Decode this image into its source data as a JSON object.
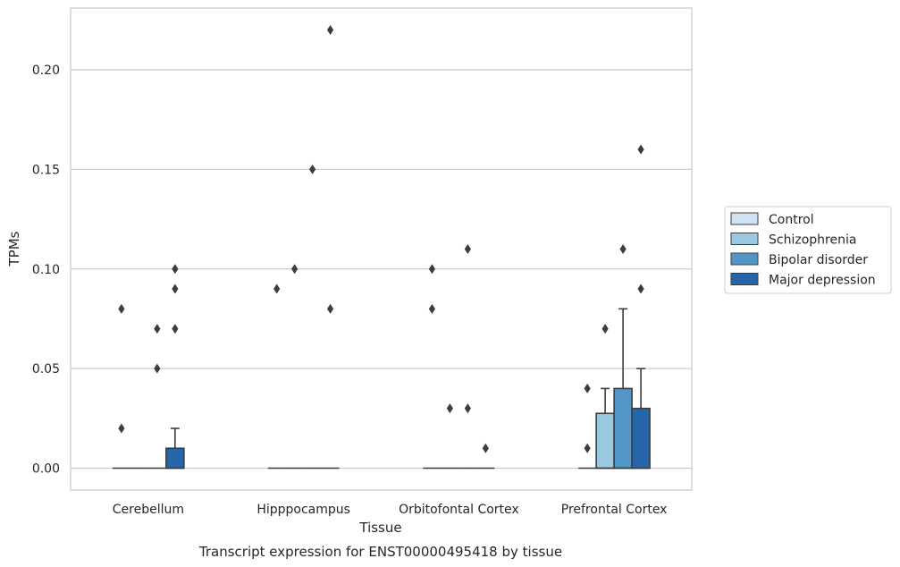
{
  "chart_data": {
    "type": "box",
    "title": "",
    "caption": "Transcript expression for ENST00000495418 by tissue",
    "xlabel": "Tissue",
    "ylabel": "TPMs",
    "ylim": [
      -0.011,
      0.231
    ],
    "yticks": [
      0.0,
      0.05,
      0.1,
      0.15,
      0.2
    ],
    "ytick_labels": [
      "0.00",
      "0.05",
      "0.10",
      "0.15",
      "0.20"
    ],
    "grid": "horizontal",
    "legend_position": "right",
    "categories": [
      "Cerebellum",
      "Hipppocampus",
      "Orbitofontal Cortex",
      "Prefrontal Cortex"
    ],
    "series": [
      {
        "name": "Control",
        "color": "#d1e2f2",
        "boxes": [
          {
            "q1": 0.0,
            "median": 0.0,
            "q3": 0.0,
            "whisker_low": 0.0,
            "whisker_high": 0.0,
            "outliers": [
              0.02,
              0.08
            ]
          },
          {
            "q1": 0.0,
            "median": 0.0,
            "q3": 0.0,
            "whisker_low": 0.0,
            "whisker_high": 0.0,
            "outliers": [
              0.09
            ]
          },
          {
            "q1": 0.0,
            "median": 0.0,
            "q3": 0.0,
            "whisker_low": 0.0,
            "whisker_high": 0.0,
            "outliers": [
              0.08,
              0.1
            ]
          },
          {
            "q1": 0.0,
            "median": 0.0,
            "q3": 0.0,
            "whisker_low": 0.0,
            "whisker_high": 0.0,
            "outliers": [
              0.01,
              0.04
            ]
          }
        ]
      },
      {
        "name": "Schizophrenia",
        "color": "#9ac8e0",
        "boxes": [
          {
            "q1": 0.0,
            "median": 0.0,
            "q3": 0.0,
            "whisker_low": 0.0,
            "whisker_high": 0.0,
            "outliers": []
          },
          {
            "q1": 0.0,
            "median": 0.0,
            "q3": 0.0,
            "whisker_low": 0.0,
            "whisker_high": 0.0,
            "outliers": [
              0.1
            ]
          },
          {
            "q1": 0.0,
            "median": 0.0,
            "q3": 0.0,
            "whisker_low": 0.0,
            "whisker_high": 0.0,
            "outliers": [
              0.03
            ]
          },
          {
            "q1": 0.0,
            "median": 0.0,
            "q3": 0.0275,
            "whisker_low": 0.0,
            "whisker_high": 0.04,
            "outliers": [
              0.07
            ]
          }
        ]
      },
      {
        "name": "Bipolar disorder",
        "color": "#5296c8",
        "boxes": [
          {
            "q1": 0.0,
            "median": 0.0,
            "q3": 0.0,
            "whisker_low": 0.0,
            "whisker_high": 0.0,
            "outliers": [
              0.05,
              0.07
            ]
          },
          {
            "q1": 0.0,
            "median": 0.0,
            "q3": 0.0,
            "whisker_low": 0.0,
            "whisker_high": 0.0,
            "outliers": [
              0.15
            ]
          },
          {
            "q1": 0.0,
            "median": 0.0,
            "q3": 0.0,
            "whisker_low": 0.0,
            "whisker_high": 0.0,
            "outliers": [
              0.03,
              0.11
            ]
          },
          {
            "q1": 0.0,
            "median": 0.0,
            "q3": 0.04,
            "whisker_low": 0.0,
            "whisker_high": 0.08,
            "outliers": [
              0.11
            ]
          }
        ]
      },
      {
        "name": "Major depression",
        "color": "#2466a9",
        "boxes": [
          {
            "q1": 0.0,
            "median": 0.0,
            "q3": 0.01,
            "whisker_low": 0.0,
            "whisker_high": 0.02,
            "outliers": [
              0.07,
              0.09,
              0.1
            ]
          },
          {
            "q1": 0.0,
            "median": 0.0,
            "q3": 0.0,
            "whisker_low": 0.0,
            "whisker_high": 0.0,
            "outliers": [
              0.08,
              0.22
            ]
          },
          {
            "q1": 0.0,
            "median": 0.0,
            "q3": 0.0,
            "whisker_low": 0.0,
            "whisker_high": 0.0,
            "outliers": [
              0.01
            ]
          },
          {
            "q1": 0.0,
            "median": 0.0,
            "q3": 0.03,
            "whisker_low": 0.0,
            "whisker_high": 0.05,
            "outliers": [
              0.09,
              0.16
            ]
          }
        ]
      }
    ]
  },
  "colors": {
    "edge": "#3d3d3d",
    "grid": "#cccccc",
    "frame": "#cccccc"
  }
}
